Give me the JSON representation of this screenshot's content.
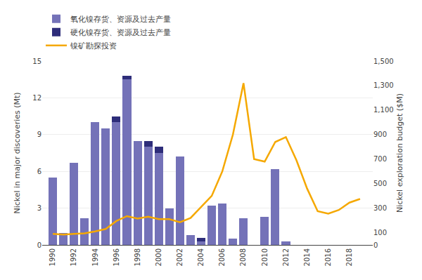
{
  "chart_data": {
    "type": "bar",
    "stacked": true,
    "grid": true,
    "legend": "upper left",
    "x": [
      1990,
      1991,
      1992,
      1993,
      1994,
      1995,
      1996,
      1997,
      1998,
      1999,
      2000,
      2001,
      2002,
      2003,
      2004,
      2005,
      2006,
      2007,
      2008,
      2009,
      2010,
      2011,
      2012,
      2013,
      2014,
      2015,
      2016,
      2017,
      2018,
      2019
    ],
    "xlim": [
      1989.0,
      2020.2
    ],
    "xticks": [
      1990,
      1992,
      1994,
      1996,
      1998,
      2000,
      2002,
      2004,
      2006,
      2008,
      2010,
      2012,
      2014,
      2016,
      2018
    ],
    "ylabel": "Nickel in major discoveries (Mt)",
    "y2label": "Nickel exploration budget ($M)",
    "ylim": [
      0,
      15
    ],
    "yticks": [
      0,
      3,
      6,
      9,
      12,
      15
    ],
    "y2lim": [
      0,
      1500
    ],
    "y2ticks": [
      0,
      100,
      300,
      500,
      700,
      900,
      {
        "value": 1100,
        "label": "1,100"
      },
      {
        "value": 1300,
        "label": "1,300"
      },
      {
        "value": 1500,
        "label": "1,500"
      }
    ],
    "series": [
      {
        "name": "氧化镍存货、资源及过去产量",
        "type": "bar",
        "color": "#7472b8",
        "values": [
          5.5,
          1.0,
          6.7,
          2.2,
          10.0,
          9.5,
          10.0,
          13.5,
          8.5,
          8.0,
          7.5,
          3.0,
          7.2,
          0.8,
          0.3,
          3.2,
          3.4,
          0.5,
          2.2,
          0.0,
          2.3,
          6.2,
          0.3,
          0.0,
          0.0,
          0.0,
          0.0,
          0.0,
          0.0,
          0.0
        ]
      },
      {
        "name": "硬化镍存货、资源及过去产量",
        "type": "bar",
        "color": "#2e2d7a",
        "values": [
          0.0,
          0.0,
          0.0,
          0.0,
          0.0,
          0.0,
          0.5,
          0.3,
          0.0,
          0.5,
          0.5,
          0.0,
          0.0,
          0.0,
          0.3,
          0.0,
          0.0,
          0.0,
          0.0,
          0.0,
          0.0,
          0.0,
          0.0,
          0.0,
          0.0,
          0.0,
          0.0,
          0.0,
          0.0,
          0.0
        ]
      },
      {
        "name": "镍矿勘探投资",
        "type": "line",
        "axis": "y2",
        "color": "#f5a800",
        "values": [
          90,
          85,
          90,
          95,
          110,
          130,
          195,
          235,
          215,
          230,
          210,
          210,
          185,
          220,
          310,
          400,
          600,
          900,
          1320,
          700,
          680,
          840,
          880,
          690,
          460,
          275,
          255,
          285,
          345,
          375
        ]
      }
    ]
  }
}
